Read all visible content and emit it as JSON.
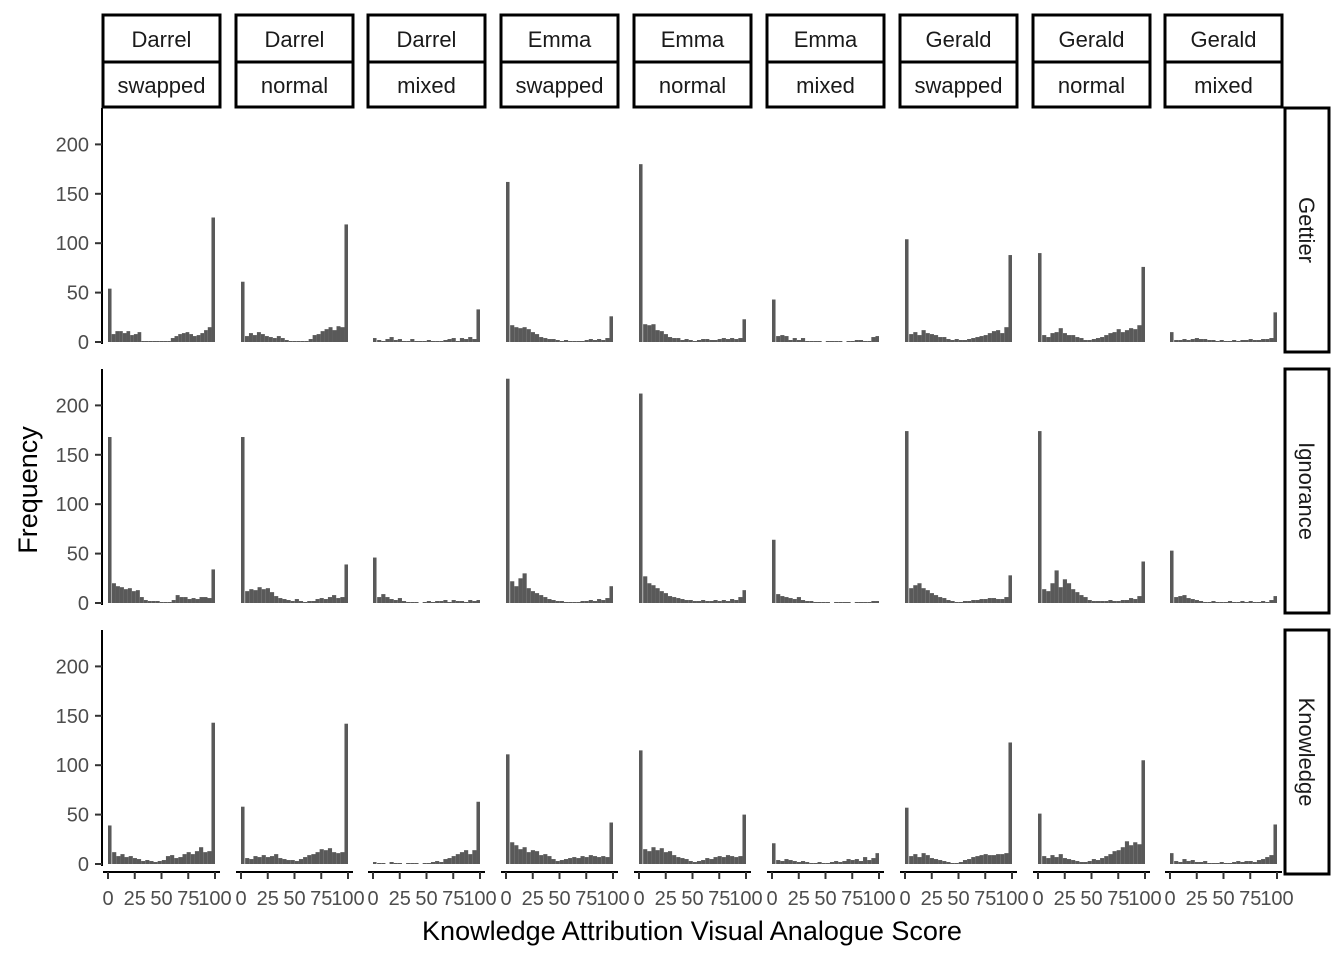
{
  "chart_data": {
    "type": "bar",
    "chart_kind": "faceted histogram grid",
    "xlabel": "Knowledge Attribution Visual Analogue Score",
    "ylabel": "Frequency",
    "xlim": [
      0,
      100
    ],
    "ylim": [
      0,
      235
    ],
    "x_ticks": [
      "0",
      "25",
      "50",
      "75",
      "100"
    ],
    "y_ticks": [
      "0",
      "50",
      "100",
      "150",
      "200"
    ],
    "grid": false,
    "bar_color": "#595959",
    "columns": [
      {
        "name": "Darrel",
        "condition": "swapped"
      },
      {
        "name": "Darrel",
        "condition": "normal"
      },
      {
        "name": "Darrel",
        "condition": "mixed"
      },
      {
        "name": "Emma",
        "condition": "swapped"
      },
      {
        "name": "Emma",
        "condition": "normal"
      },
      {
        "name": "Emma",
        "condition": "mixed"
      },
      {
        "name": "Gerald",
        "condition": "swapped"
      },
      {
        "name": "Gerald",
        "condition": "normal"
      },
      {
        "name": "Gerald",
        "condition": "mixed"
      }
    ],
    "rows": [
      "Gettier",
      "Ignorance",
      "Knowledge"
    ],
    "bin_width_approx": 3.3,
    "panels": [
      {
        "row": "Gettier",
        "col": 0,
        "first": 54,
        "last": 126,
        "low": [
          8,
          11,
          11,
          9,
          11,
          7,
          8,
          10,
          1,
          1,
          1,
          1,
          1,
          1,
          1,
          1,
          4,
          6,
          8,
          9,
          10,
          8,
          6,
          7,
          9,
          12,
          15
        ]
      },
      {
        "row": "Gettier",
        "col": 1,
        "first": 61,
        "last": 119,
        "low": [
          6,
          9,
          7,
          10,
          8,
          6,
          5,
          4,
          6,
          4,
          2,
          1,
          1,
          1,
          1,
          1,
          3,
          7,
          8,
          11,
          13,
          15,
          12,
          16,
          15
        ]
      },
      {
        "row": "Gettier",
        "col": 2,
        "first": 4,
        "last": 33,
        "low": [
          2,
          1,
          3,
          5,
          2,
          3,
          1,
          1,
          3,
          1,
          1,
          1,
          2,
          1,
          1,
          1,
          2,
          3,
          4,
          1,
          4,
          3,
          5,
          3
        ]
      },
      {
        "row": "Gettier",
        "col": 3,
        "first": 162,
        "last": 26,
        "low": [
          17,
          15,
          14,
          15,
          13,
          10,
          8,
          5,
          4,
          3,
          3,
          2,
          1,
          2,
          1,
          1,
          1,
          1,
          2,
          3,
          2,
          3,
          2,
          4
        ]
      },
      {
        "row": "Gettier",
        "col": 4,
        "first": 180,
        "last": 23,
        "low": [
          18,
          17,
          18,
          12,
          11,
          8,
          5,
          4,
          4,
          2,
          3,
          2,
          1,
          2,
          3,
          3,
          2,
          2,
          3,
          4,
          3,
          4,
          3,
          4
        ]
      },
      {
        "row": "Gettier",
        "col": 5,
        "first": 43,
        "last": 6,
        "low": [
          6,
          7,
          6,
          2,
          4,
          2,
          4,
          1,
          1,
          1,
          1,
          0,
          1,
          1,
          1,
          1,
          0,
          1,
          1,
          2,
          2,
          1,
          1,
          5
        ]
      },
      {
        "row": "Gettier",
        "col": 6,
        "first": 104,
        "last": 88,
        "low": [
          8,
          10,
          7,
          12,
          9,
          8,
          7,
          5,
          5,
          3,
          2,
          3,
          2,
          2,
          3,
          4,
          5,
          6,
          7,
          9,
          11,
          12,
          9,
          15
        ]
      },
      {
        "row": "Gettier",
        "col": 7,
        "first": 90,
        "last": 76,
        "low": [
          7,
          5,
          9,
          10,
          14,
          9,
          7,
          7,
          5,
          4,
          2,
          2,
          3,
          4,
          5,
          7,
          9,
          10,
          13,
          10,
          12,
          14,
          13,
          17
        ]
      },
      {
        "row": "Gettier",
        "col": 8,
        "first": 10,
        "last": 30,
        "low": [
          2,
          2,
          3,
          2,
          3,
          4,
          3,
          3,
          2,
          2,
          1,
          2,
          1,
          1,
          2,
          1,
          2,
          2,
          3,
          2,
          2,
          3,
          3,
          4
        ]
      },
      {
        "row": "Ignorance",
        "col": 0,
        "first": 168,
        "last": 34,
        "low": [
          20,
          17,
          16,
          14,
          15,
          12,
          13,
          6,
          3,
          2,
          2,
          2,
          1,
          1,
          1,
          3,
          8,
          6,
          6,
          4,
          5,
          4,
          6,
          6,
          5
        ]
      },
      {
        "row": "Ignorance",
        "col": 1,
        "first": 168,
        "last": 39,
        "low": [
          12,
          14,
          13,
          16,
          14,
          15,
          11,
          7,
          5,
          4,
          3,
          2,
          4,
          2,
          1,
          2,
          2,
          4,
          5,
          4,
          6,
          8,
          5,
          6
        ]
      },
      {
        "row": "Ignorance",
        "col": 2,
        "first": 46,
        "last": 3,
        "low": [
          6,
          9,
          6,
          4,
          3,
          5,
          2,
          1,
          1,
          1,
          0,
          1,
          2,
          1,
          2,
          2,
          3,
          1,
          3,
          2,
          2,
          1,
          3,
          2
        ]
      },
      {
        "row": "Ignorance",
        "col": 3,
        "first": 227,
        "last": 17,
        "low": [
          22,
          17,
          25,
          30,
          15,
          12,
          10,
          8,
          6,
          4,
          3,
          2,
          2,
          1,
          1,
          1,
          1,
          2,
          2,
          3,
          2,
          4,
          3,
          5
        ]
      },
      {
        "row": "Ignorance",
        "col": 4,
        "first": 212,
        "last": 13,
        "low": [
          27,
          20,
          18,
          15,
          12,
          10,
          7,
          6,
          5,
          4,
          3,
          3,
          2,
          2,
          3,
          2,
          2,
          3,
          2,
          3,
          2,
          4,
          3,
          6
        ]
      },
      {
        "row": "Ignorance",
        "col": 5,
        "first": 64,
        "last": 2,
        "low": [
          9,
          7,
          6,
          5,
          4,
          6,
          3,
          2,
          2,
          1,
          1,
          1,
          1,
          0,
          1,
          1,
          1,
          1,
          0,
          1,
          1,
          1,
          1,
          2
        ]
      },
      {
        "row": "Ignorance",
        "col": 6,
        "first": 174,
        "last": 28,
        "low": [
          15,
          18,
          20,
          15,
          13,
          10,
          8,
          6,
          5,
          3,
          2,
          1,
          1,
          2,
          2,
          3,
          3,
          4,
          4,
          5,
          5,
          4,
          4,
          6
        ]
      },
      {
        "row": "Ignorance",
        "col": 7,
        "first": 174,
        "last": 42,
        "low": [
          14,
          12,
          20,
          33,
          16,
          24,
          20,
          14,
          11,
          8,
          6,
          3,
          2,
          2,
          2,
          2,
          3,
          2,
          2,
          3,
          3,
          5,
          4,
          7
        ]
      },
      {
        "row": "Ignorance",
        "col": 8,
        "first": 53,
        "last": 7,
        "low": [
          6,
          7,
          8,
          5,
          4,
          3,
          2,
          1,
          1,
          2,
          1,
          1,
          1,
          2,
          1,
          1,
          2,
          1,
          2,
          1,
          1,
          2,
          1,
          3
        ]
      },
      {
        "row": "Knowledge",
        "col": 0,
        "first": 39,
        "last": 143,
        "low": [
          12,
          8,
          10,
          7,
          8,
          6,
          5,
          3,
          4,
          3,
          2,
          3,
          4,
          8,
          9,
          6,
          7,
          10,
          12,
          10,
          13,
          17,
          12,
          13
        ]
      },
      {
        "row": "Knowledge",
        "col": 1,
        "first": 58,
        "last": 142,
        "low": [
          6,
          5,
          8,
          7,
          9,
          7,
          8,
          10,
          6,
          5,
          4,
          4,
          3,
          5,
          7,
          9,
          10,
          12,
          15,
          14,
          16,
          12,
          11,
          12
        ]
      },
      {
        "row": "Knowledge",
        "col": 2,
        "first": 2,
        "last": 63,
        "low": [
          1,
          1,
          0,
          2,
          1,
          1,
          0,
          1,
          1,
          1,
          0,
          1,
          1,
          2,
          3,
          2,
          5,
          6,
          8,
          10,
          12,
          14,
          10,
          14
        ]
      },
      {
        "row": "Knowledge",
        "col": 3,
        "first": 111,
        "last": 42,
        "low": [
          22,
          19,
          15,
          17,
          12,
          14,
          13,
          9,
          10,
          8,
          5,
          3,
          4,
          5,
          6,
          7,
          6,
          8,
          7,
          9,
          8,
          7,
          8,
          7
        ]
      },
      {
        "row": "Knowledge",
        "col": 4,
        "first": 115,
        "last": 50,
        "low": [
          15,
          13,
          17,
          14,
          16,
          12,
          13,
          9,
          7,
          6,
          5,
          3,
          2,
          3,
          4,
          6,
          5,
          7,
          8,
          7,
          9,
          8,
          7,
          8
        ]
      },
      {
        "row": "Knowledge",
        "col": 5,
        "first": 21,
        "last": 11,
        "low": [
          4,
          3,
          5,
          4,
          3,
          2,
          3,
          2,
          1,
          1,
          2,
          1,
          1,
          2,
          3,
          2,
          3,
          5,
          4,
          5,
          3,
          7,
          4,
          6
        ]
      },
      {
        "row": "Knowledge",
        "col": 6,
        "first": 57,
        "last": 123,
        "low": [
          8,
          10,
          7,
          11,
          9,
          6,
          5,
          4,
          3,
          2,
          1,
          1,
          2,
          4,
          5,
          7,
          8,
          9,
          10,
          9,
          9,
          10,
          10,
          11
        ]
      },
      {
        "row": "Knowledge",
        "col": 7,
        "first": 51,
        "last": 105,
        "low": [
          8,
          6,
          9,
          7,
          10,
          6,
          5,
          4,
          3,
          2,
          2,
          3,
          5,
          4,
          6,
          8,
          10,
          13,
          14,
          17,
          23,
          19,
          22,
          20
        ]
      },
      {
        "row": "Knowledge",
        "col": 8,
        "first": 11,
        "last": 40,
        "low": [
          3,
          2,
          5,
          3,
          4,
          2,
          2,
          3,
          1,
          1,
          1,
          2,
          1,
          1,
          2,
          3,
          2,
          3,
          3,
          2,
          4,
          5,
          7,
          9
        ]
      }
    ]
  }
}
